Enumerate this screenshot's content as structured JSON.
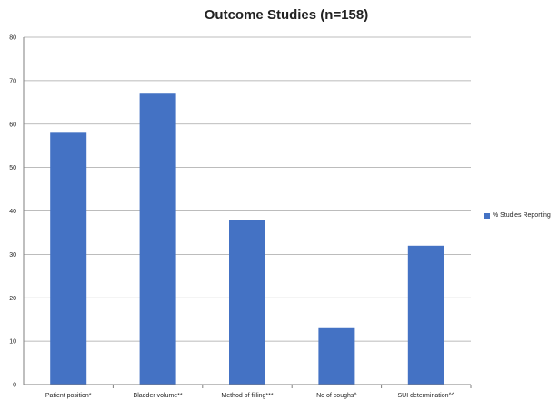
{
  "chart_data": {
    "type": "bar",
    "title": "Outcome Studies (n=158)",
    "categories": [
      "Patient position*",
      "Bladder volume**",
      "Method of filling***",
      "No of coughs^",
      "SUI determination^^"
    ],
    "series": [
      {
        "name": "% Studies Reporting",
        "values": [
          58,
          67,
          38,
          13,
          32
        ]
      }
    ],
    "xlabel": "",
    "ylabel": "",
    "ylim": [
      0,
      80
    ],
    "yticks": [
      "0",
      "10",
      "20",
      "30",
      "40",
      "50",
      "60",
      "70",
      "80"
    ],
    "grid": true,
    "legend_position": "right",
    "colors": {
      "bar": "#4472C4",
      "grid": "#a6a6a6",
      "axis": "#7f7f7f",
      "text": "#222222"
    }
  }
}
